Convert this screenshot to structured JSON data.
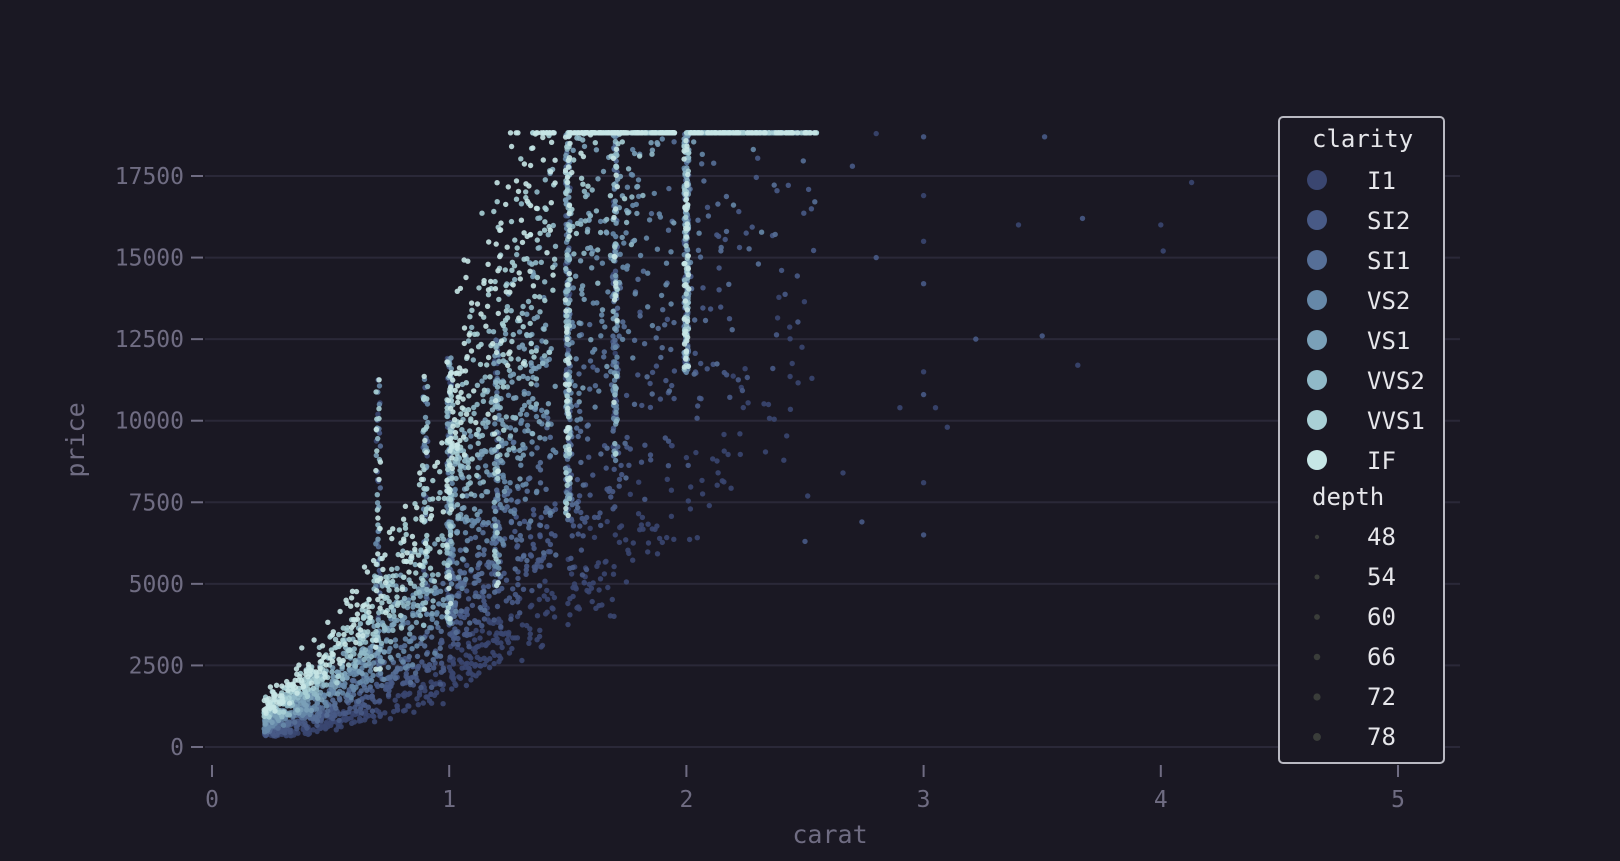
{
  "chart_data": {
    "type": "scatter",
    "title": "",
    "xlabel": "carat",
    "ylabel": "price",
    "xlim": [
      -0.1,
      5.2
    ],
    "ylim": [
      -300,
      19000
    ],
    "x_ticks": [
      0,
      1,
      2,
      3,
      4,
      5
    ],
    "x_tick_labels": [
      "0",
      "1",
      "2",
      "3",
      "4",
      "5"
    ],
    "y_ticks": [
      0,
      2500,
      5000,
      7500,
      10000,
      12500,
      15000,
      17500
    ],
    "y_tick_labels": [
      "0",
      "2500",
      "5000",
      "7500",
      "10000",
      "12500",
      "15000",
      "17500"
    ],
    "grid": "horizontal",
    "legend_position": "right",
    "hue": {
      "title": "clarity",
      "categories": [
        "I1",
        "SI2",
        "SI1",
        "VS2",
        "VS1",
        "VVS2",
        "VVS1",
        "IF"
      ],
      "colors": [
        "#3a4670",
        "#485a86",
        "#566f97",
        "#6688a8",
        "#7aa0b8",
        "#90b9c8",
        "#a9d0d6",
        "#c6e6e6"
      ]
    },
    "size": {
      "title": "depth",
      "values": [
        "48",
        "54",
        "60",
        "66",
        "72",
        "78"
      ]
    },
    "representative_points": [
      {
        "carat": 0.23,
        "price": 326,
        "clarity": "SI2",
        "depth": 61.5
      },
      {
        "carat": 0.3,
        "price": 500,
        "clarity": "VS2",
        "depth": 61.8
      },
      {
        "carat": 0.5,
        "price": 1500,
        "clarity": "VVS1",
        "depth": 62.0
      },
      {
        "carat": 0.7,
        "price": 2800,
        "clarity": "VS1",
        "depth": 61.7
      },
      {
        "carat": 0.9,
        "price": 4000,
        "clarity": "SI1",
        "depth": 62.2
      },
      {
        "carat": 1.0,
        "price": 5500,
        "clarity": "SI2",
        "depth": 62.5
      },
      {
        "carat": 1.01,
        "price": 16500,
        "clarity": "VVS1",
        "depth": 61.9
      },
      {
        "carat": 1.2,
        "price": 8000,
        "clarity": "VS2",
        "depth": 61.5
      },
      {
        "carat": 1.5,
        "price": 10500,
        "clarity": "SI1",
        "depth": 62.0
      },
      {
        "carat": 1.5,
        "price": 18500,
        "clarity": "VVS2",
        "depth": 61.6
      },
      {
        "carat": 1.7,
        "price": 12000,
        "clarity": "VS2",
        "depth": 62.1
      },
      {
        "carat": 2.0,
        "price": 15000,
        "clarity": "SI2",
        "depth": 62.3
      },
      {
        "carat": 2.0,
        "price": 18700,
        "clarity": "SI1",
        "depth": 61.8
      },
      {
        "carat": 2.5,
        "price": 16000,
        "clarity": "SI2",
        "depth": 62.0
      },
      {
        "carat": 3.0,
        "price": 12000,
        "clarity": "I1",
        "depth": 62.5
      },
      {
        "carat": 3.5,
        "price": 18700,
        "clarity": "SI2",
        "depth": 61.0
      },
      {
        "carat": 4.0,
        "price": 16000,
        "clarity": "I1",
        "depth": 63.0
      },
      {
        "carat": 4.13,
        "price": 17300,
        "clarity": "I1",
        "depth": 64.8
      }
    ]
  }
}
